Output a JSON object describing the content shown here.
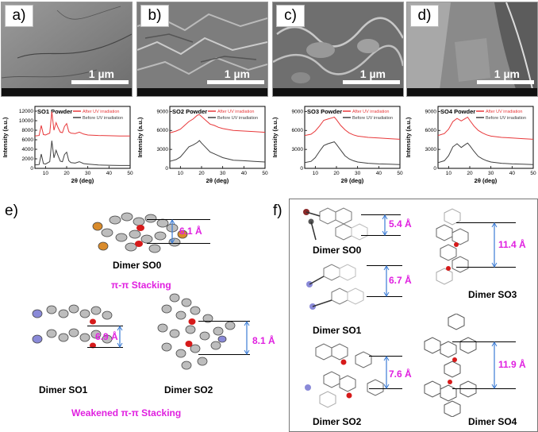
{
  "panels_top": [
    {
      "id": "a",
      "label": "a)",
      "scale": "1 µm",
      "xrd_title": "SO1 Powder",
      "yticks": [
        "0",
        "2000",
        "4000",
        "6000",
        "8000",
        "10000",
        "12000"
      ],
      "ymax": 13000
    },
    {
      "id": "b",
      "label": "b)",
      "scale": "1 µm",
      "xrd_title": "SO2 Powder",
      "yticks": [
        "0",
        "3000",
        "6000",
        "9000"
      ],
      "ymax": 9800
    },
    {
      "id": "c",
      "label": "c)",
      "scale": "1 µm",
      "xrd_title": "SO3 Powder",
      "yticks": [
        "0",
        "3000",
        "6000",
        "9000"
      ],
      "ymax": 9800
    },
    {
      "id": "d",
      "label": "d)",
      "scale": "1 µm",
      "xrd_title": "SO4 Powder",
      "yticks": [
        "0",
        "3000",
        "6000",
        "9000"
      ],
      "ymax": 9800
    }
  ],
  "xrd_common": {
    "ylabel": "Intensity (a.u.)",
    "xlabel": "2θ (deg)",
    "xticks": [
      "10",
      "20",
      "30",
      "40",
      "50"
    ],
    "legend_after": "After UV irradiation",
    "legend_before": "Before UV irradiation",
    "color_after": "#e8383a",
    "color_before": "#404040"
  },
  "panel_e": {
    "label": "e)",
    "caption_so0": "Dimer SO0",
    "dist_so0": "6.1 Å",
    "stacking": "π-π Stacking",
    "caption_so1": "Dimer SO1",
    "dist_so1": "6.9 Å",
    "caption_so2": "Dimer SO2",
    "dist_so2": "8.1 Å",
    "weakened": "Weakened π-π Stacking"
  },
  "panel_f": {
    "label": "f)",
    "items": [
      {
        "caption": "Dimer SO0",
        "dist": "5.4 Å"
      },
      {
        "caption": "Dimer SO1",
        "dist": "6.7 Å"
      },
      {
        "caption": "Dimer SO2",
        "dist": "7.6 Å"
      },
      {
        "caption": "Dimer SO3",
        "dist": "11.4 Å"
      },
      {
        "caption": "Dimer SO4",
        "dist": "11.9 Å"
      }
    ]
  },
  "colors": {
    "accent": "#e020e0",
    "arrow": "#3a7bd5"
  },
  "chart_data": [
    {
      "type": "line",
      "title": "SO1 Powder",
      "xlabel": "2θ (deg)",
      "ylabel": "Intensity (a.u.)",
      "xlim": [
        5,
        50
      ],
      "ylim": [
        0,
        13000
      ],
      "series": [
        {
          "name": "After UV irradiation",
          "x": [
            5,
            7,
            8,
            9,
            10,
            12,
            13,
            14,
            15,
            16,
            17,
            18,
            19,
            20,
            21,
            22,
            24,
            26,
            28,
            30,
            35,
            40,
            45,
            50
          ],
          "y": [
            6800,
            6900,
            9000,
            7100,
            7000,
            7400,
            11900,
            8000,
            9600,
            8500,
            7600,
            7500,
            8800,
            9400,
            7700,
            7400,
            7300,
            7600,
            7200,
            7000,
            6900,
            6850,
            6800,
            6800
          ]
        },
        {
          "name": "Before UV irradiation",
          "x": [
            5,
            7,
            8,
            9,
            10,
            12,
            13,
            14,
            15,
            16,
            17,
            18,
            19,
            20,
            21,
            22,
            24,
            26,
            28,
            30,
            35,
            40,
            45,
            50
          ],
          "y": [
            700,
            800,
            3000,
            1000,
            900,
            1400,
            5800,
            2200,
            3800,
            2600,
            1500,
            1400,
            2900,
            3400,
            1600,
            1200,
            1100,
            1400,
            1000,
            900,
            700,
            650,
            600,
            600
          ]
        }
      ]
    },
    {
      "type": "line",
      "title": "SO2 Powder",
      "xlabel": "2θ (deg)",
      "ylabel": "Intensity (a.u.)",
      "xlim": [
        5,
        50
      ],
      "ylim": [
        0,
        9800
      ],
      "series": [
        {
          "name": "After UV irradiation",
          "x": [
            5,
            8,
            10,
            12,
            14,
            16,
            18,
            19,
            20,
            22,
            24,
            26,
            28,
            30,
            35,
            40,
            45,
            50
          ],
          "y": [
            5600,
            5900,
            6200,
            6800,
            7400,
            7800,
            8400,
            8500,
            8200,
            7600,
            7000,
            6800,
            6500,
            6300,
            6000,
            5900,
            5800,
            5700
          ]
        },
        {
          "name": "Before UV irradiation",
          "x": [
            5,
            8,
            10,
            12,
            14,
            16,
            18,
            19,
            20,
            22,
            24,
            26,
            28,
            30,
            35,
            40,
            45,
            50
          ],
          "y": [
            1100,
            1400,
            1800,
            2600,
            3400,
            3700,
            4100,
            4400,
            4000,
            3300,
            2600,
            2300,
            2000,
            1700,
            1300,
            1200,
            1100,
            1000
          ]
        }
      ]
    },
    {
      "type": "line",
      "title": "SO3 Powder",
      "xlabel": "2θ (deg)",
      "ylabel": "Intensity (a.u.)",
      "xlim": [
        5,
        50
      ],
      "ylim": [
        0,
        9800
      ],
      "series": [
        {
          "name": "After UV irradiation",
          "x": [
            5,
            8,
            10,
            12,
            14,
            16,
            18,
            19,
            20,
            22,
            24,
            26,
            28,
            30,
            35,
            40,
            45,
            50
          ],
          "y": [
            5200,
            5400,
            5900,
            6700,
            7600,
            7800,
            8000,
            8100,
            7700,
            6800,
            6100,
            5600,
            5300,
            5100,
            4900,
            4800,
            4700,
            4600
          ]
        },
        {
          "name": "Before UV irradiation",
          "x": [
            5,
            8,
            10,
            12,
            14,
            16,
            18,
            19,
            20,
            22,
            24,
            26,
            28,
            30,
            35,
            40,
            45,
            50
          ],
          "y": [
            900,
            1100,
            1700,
            2700,
            3600,
            3900,
            4100,
            4200,
            3800,
            2900,
            2000,
            1500,
            1200,
            1000,
            800,
            700,
            650,
            600
          ]
        }
      ]
    },
    {
      "type": "line",
      "title": "SO4 Powder",
      "xlabel": "2θ (deg)",
      "ylabel": "Intensity (a.u.)",
      "xlim": [
        5,
        50
      ],
      "ylim": [
        0,
        9800
      ],
      "series": [
        {
          "name": "After UV irradiation",
          "x": [
            5,
            8,
            10,
            12,
            14,
            16,
            18,
            19,
            20,
            22,
            24,
            26,
            28,
            30,
            35,
            40,
            45,
            50
          ],
          "y": [
            5200,
            5500,
            6200,
            7400,
            7900,
            7500,
            7900,
            8100,
            7600,
            6700,
            6000,
            5600,
            5300,
            5100,
            4900,
            4800,
            4700,
            4600
          ]
        },
        {
          "name": "Before UV irradiation",
          "x": [
            5,
            8,
            10,
            12,
            14,
            16,
            18,
            19,
            20,
            22,
            24,
            26,
            28,
            30,
            35,
            40,
            45,
            50
          ],
          "y": [
            900,
            1200,
            2000,
            3400,
            3900,
            3300,
            3800,
            4000,
            3600,
            2700,
            1900,
            1500,
            1200,
            1000,
            800,
            700,
            650,
            600
          ]
        }
      ]
    }
  ]
}
